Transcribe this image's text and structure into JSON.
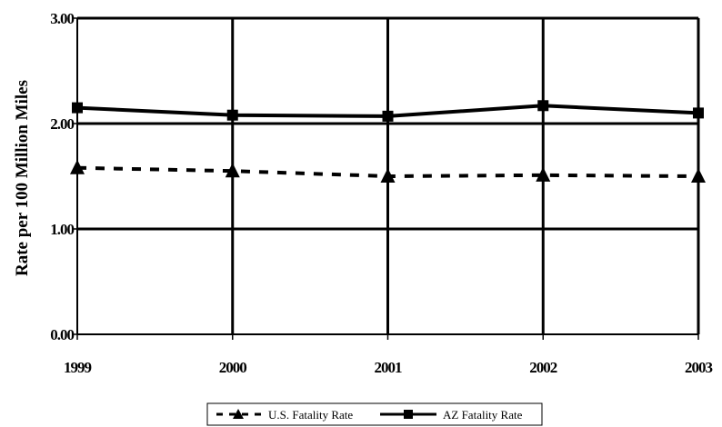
{
  "chart_data": {
    "type": "line",
    "title": "",
    "xlabel": "",
    "ylabel": "Rate per 100 Million Miles",
    "categories": [
      "1999",
      "2000",
      "2001",
      "2002",
      "2003"
    ],
    "y_ticks": [
      "0.00",
      "1.00",
      "2.00",
      "3.00"
    ],
    "ylim": [
      0,
      3
    ],
    "grid": "major gridlines on both axes",
    "legend": "bottom-center",
    "series": [
      {
        "name": "U.S. Fatality Rate",
        "values": [
          1.58,
          1.55,
          1.5,
          1.51,
          1.5
        ],
        "line_style": "dashed",
        "marker": "triangle",
        "color": "#000000"
      },
      {
        "name": "AZ Fatality Rate",
        "values": [
          2.15,
          2.08,
          2.07,
          2.17,
          2.1
        ],
        "line_style": "solid",
        "marker": "square",
        "color": "#000000"
      }
    ]
  }
}
